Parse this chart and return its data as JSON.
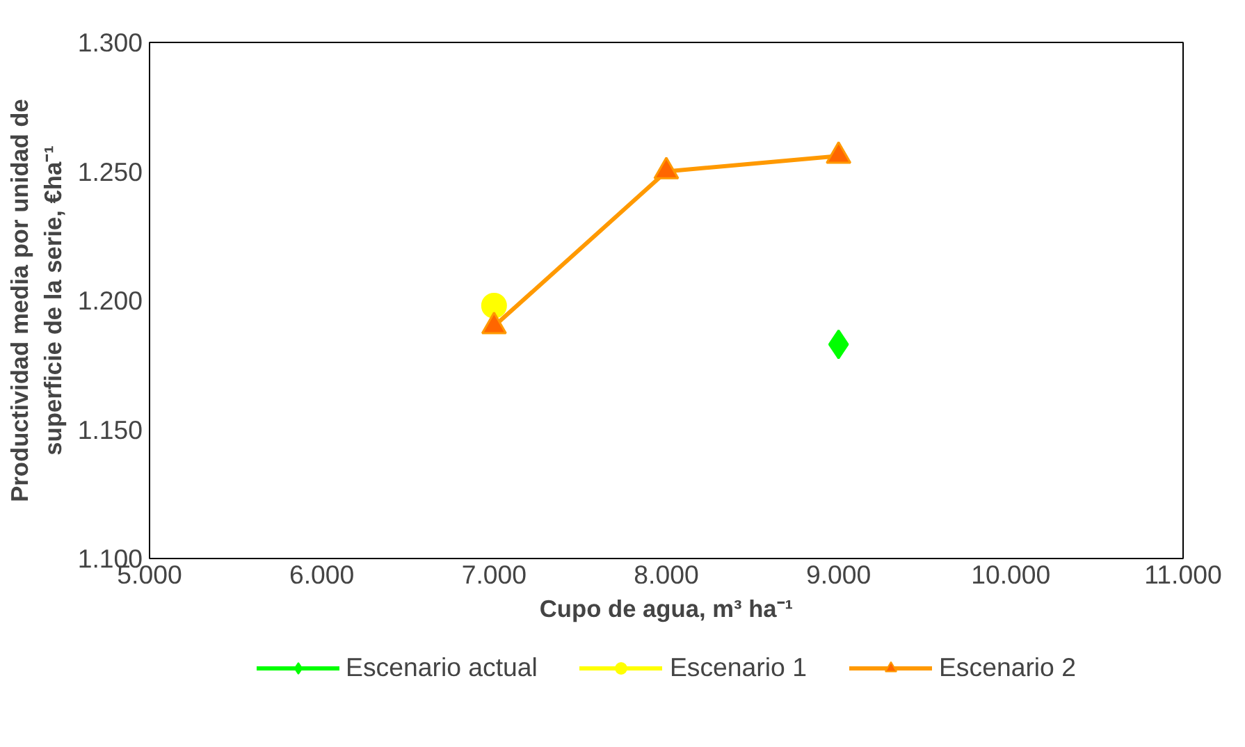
{
  "chart_data": {
    "type": "line",
    "xlabel": "Cupo de agua, m³ ha⁻¹",
    "ylabel": "Productividad media por unidad de superficie de la serie, €ha⁻¹",
    "xlim": [
      5000,
      11000
    ],
    "xticks": [
      {
        "value": 5000,
        "label": "5.000"
      },
      {
        "value": 6000,
        "label": "6.000"
      },
      {
        "value": 7000,
        "label": "7.000"
      },
      {
        "value": 8000,
        "label": "8.000"
      },
      {
        "value": 9000,
        "label": "9.000"
      },
      {
        "value": 10000,
        "label": "10.000"
      },
      {
        "value": 11000,
        "label": "11.000"
      }
    ],
    "ylim": [
      1100,
      1300
    ],
    "yticks": [
      {
        "value": 1100,
        "label": "1.100"
      },
      {
        "value": 1150,
        "label": "1.150"
      },
      {
        "value": 1200,
        "label": "1.200"
      },
      {
        "value": 1250,
        "label": "1.250"
      },
      {
        "value": 1300,
        "label": "1.300"
      }
    ],
    "legend": "bottom",
    "series": [
      {
        "name": "Escenario actual",
        "type": "scatter",
        "marker": "diamond",
        "color": "#00ff00",
        "x": [
          9000
        ],
        "values": [
          1183
        ]
      },
      {
        "name": "Escenario 1",
        "type": "scatter",
        "marker": "circle",
        "color": "#ffff00",
        "x": [
          7000
        ],
        "values": [
          1198
        ]
      },
      {
        "name": "Escenario 2",
        "marker": "triangle",
        "color": "#ff9900",
        "x": [
          7000,
          8000,
          9000
        ],
        "values": [
          1190,
          1250,
          1256
        ]
      }
    ]
  }
}
